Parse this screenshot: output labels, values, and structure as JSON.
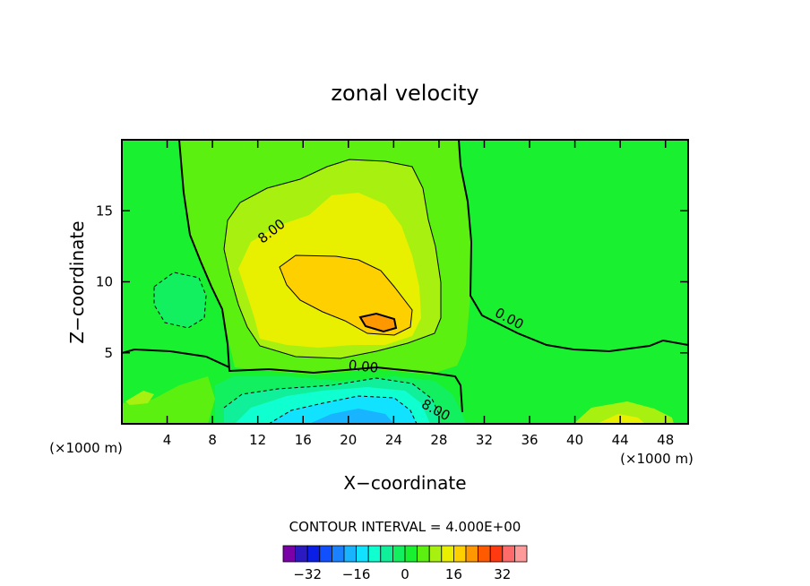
{
  "chart_data": {
    "type": "heatmap",
    "title": "zonal velocity",
    "xlabel": "X−coordinate",
    "ylabel": "Z−coordinate",
    "x_unit_left": "(×1000 m)",
    "x_unit_right": "(×1000 m)",
    "xlim": [
      0,
      50
    ],
    "ylim": [
      0,
      20
    ],
    "x_ticks": [
      4,
      8,
      12,
      16,
      20,
      24,
      28,
      32,
      36,
      40,
      44,
      48
    ],
    "y_ticks": [
      5,
      10,
      15
    ],
    "contour_labels": [
      "8.00",
      "0.00",
      "0.00",
      "8.00"
    ],
    "contour_interval_text": "CONTOUR INTERVAL = 4.000E+00",
    "colorbar": {
      "levels": [
        -36,
        -32,
        -28,
        -24,
        -20,
        -16,
        -12,
        -8,
        -4,
        0,
        4,
        8,
        12,
        16,
        20,
        24,
        28,
        32,
        36
      ],
      "tick_labels": [
        "−32",
        "−16",
        "0",
        "16",
        "32"
      ],
      "tick_values": [
        -32,
        -16,
        0,
        16,
        32
      ],
      "colors": [
        "#7a00a8",
        "#2a1ac0",
        "#0a1ee6",
        "#1050ff",
        "#1a82ff",
        "#19b4ff",
        "#10e2ff",
        "#10ffd0",
        "#10f09a",
        "#12f060",
        "#18f030",
        "#5cf010",
        "#a8f010",
        "#e8f000",
        "#ffd000",
        "#ff9800",
        "#ff5a00",
        "#ff3a10",
        "#ff6a6a",
        "#ff9a9a"
      ]
    },
    "field_regions": [
      {
        "name": "background",
        "level": 0
      },
      {
        "name": "upper-jet-outer",
        "level": 4
      },
      {
        "name": "upper-jet",
        "level": 8
      },
      {
        "name": "upper-jet-core",
        "level": 12
      },
      {
        "name": "upper-jet-max",
        "level": 16
      },
      {
        "name": "upper-jet-peak",
        "level": 20
      },
      {
        "name": "left-low",
        "level": -4
      },
      {
        "name": "surface-low-outer",
        "level": -4
      },
      {
        "name": "surface-low",
        "level": -8
      },
      {
        "name": "surface-low-core",
        "level": -12
      },
      {
        "name": "surface-low-min",
        "level": -16
      },
      {
        "name": "surface-low-peak",
        "level": -20
      }
    ]
  }
}
